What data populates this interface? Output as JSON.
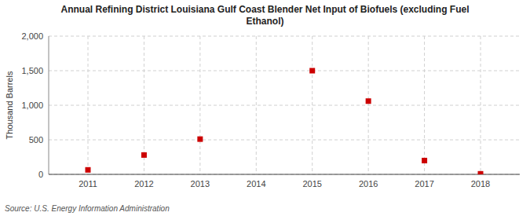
{
  "chart_data": {
    "type": "scatter",
    "title": "Annual Refining District Louisiana Gulf Coast Blender Net Input of Biofuels (excluding Fuel\nEthanol)",
    "y_label": "Thousand Barrels",
    "annotations": [
      "Source: U.S. Energy Information Administration"
    ],
    "x": [
      2011,
      2012,
      2013,
      2014,
      2015,
      2016,
      2017,
      2018
    ],
    "values": [
      65,
      280,
      510,
      null,
      1500,
      1060,
      200,
      8
    ],
    "color": "#cc0000",
    "marker": "square",
    "xlim": [
      2010.3,
      2018.7
    ],
    "xticks": [
      2011,
      2012,
      2013,
      2014,
      2015,
      2016,
      2017,
      2018
    ],
    "ylim": [
      0,
      2000
    ],
    "yticks": [
      0,
      500,
      {
        "value": 1000,
        "label": "1,000"
      },
      {
        "value": 1500,
        "label": "1,500"
      },
      {
        "value": 2000,
        "label": "2,000"
      }
    ],
    "grid": true
  }
}
